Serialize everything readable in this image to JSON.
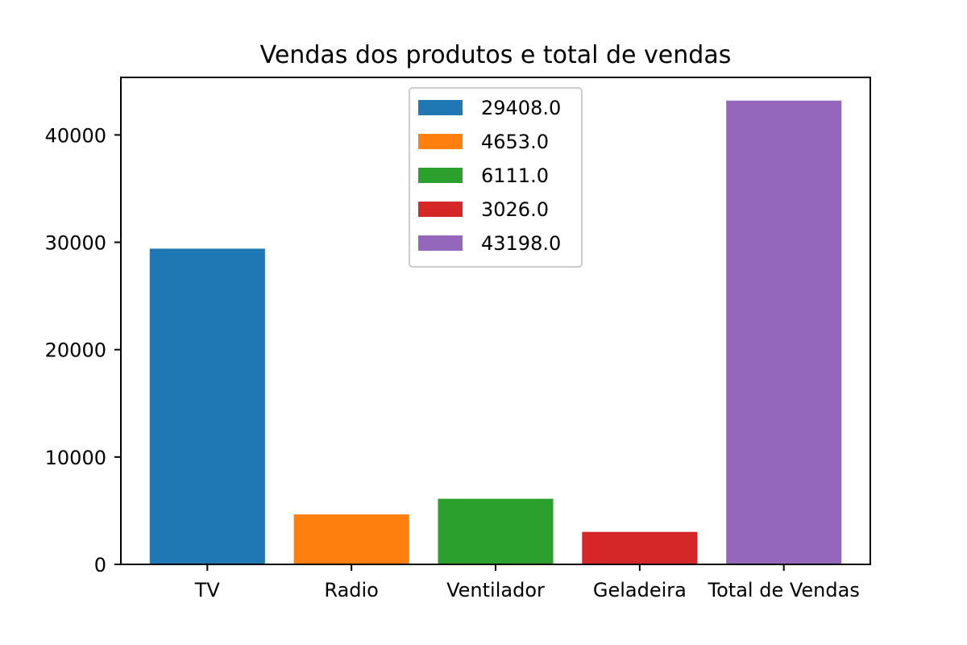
{
  "chart_data": {
    "type": "bar",
    "title": "Vendas dos produtos e total de vendas",
    "xlabel": "",
    "ylabel": "",
    "categories": [
      "TV",
      "Radio",
      "Ventilador",
      "Geladeira",
      "Total de Vendas"
    ],
    "values": [
      29408.0,
      4653.0,
      6111.0,
      3026.0,
      43198.0
    ],
    "colors": [
      "#1f77b4",
      "#ff7f0e",
      "#2ca02c",
      "#d62728",
      "#9467bd"
    ],
    "legend": {
      "placement": "upper center",
      "entries": [
        "29408.0",
        "4653.0",
        "6111.0",
        "3026.0",
        "43198.0"
      ]
    },
    "yticks": [
      0,
      10000,
      20000,
      30000,
      40000
    ],
    "ylim": [
      0,
      45359
    ],
    "grid": false
  }
}
